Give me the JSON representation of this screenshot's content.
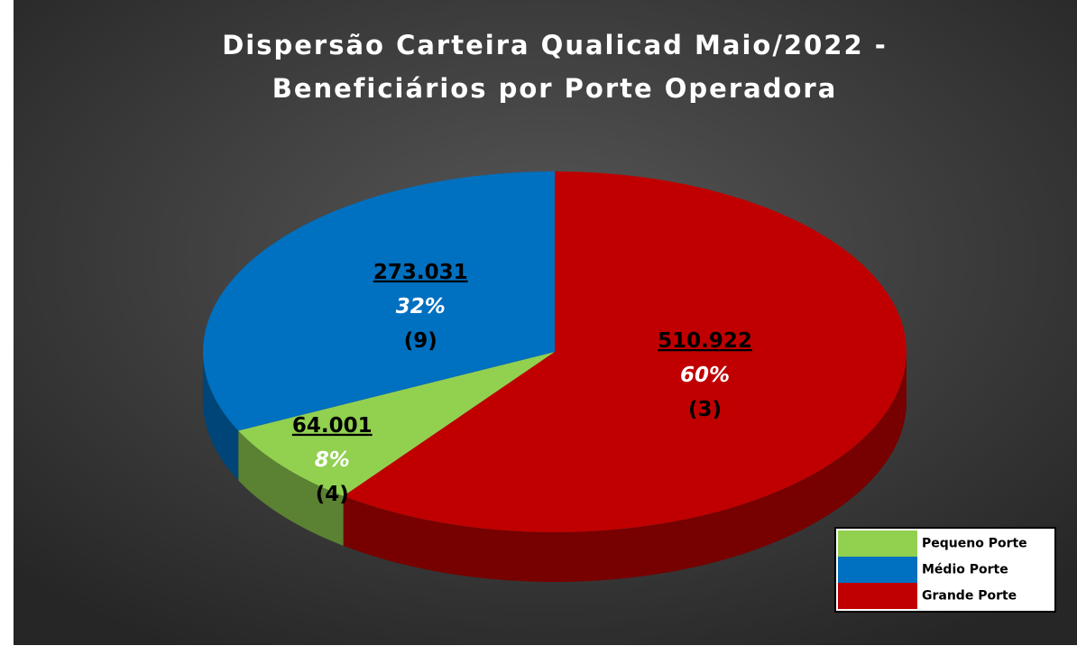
{
  "chart_data": {
    "type": "pie",
    "title": "Dispersão Carteira Qualicad Maio/2022 -",
    "subtitle": "Beneficiários por Porte Operadora",
    "categories": [
      "Pequeno Porte",
      "Médio Porte",
      "Grande Porte"
    ],
    "values": [
      64001,
      273031,
      510922
    ],
    "value_labels": [
      "64.001",
      "273.031",
      "510.922"
    ],
    "percentages": [
      8,
      32,
      60
    ],
    "percentage_labels": [
      "8%",
      "32%",
      "60%"
    ],
    "counts": [
      4,
      9,
      3
    ],
    "count_labels": [
      "(4)",
      "(9)",
      "(3)"
    ],
    "colors": [
      "#92d050",
      "#0070c0",
      "#c00000"
    ],
    "legend": "bottom-right"
  }
}
